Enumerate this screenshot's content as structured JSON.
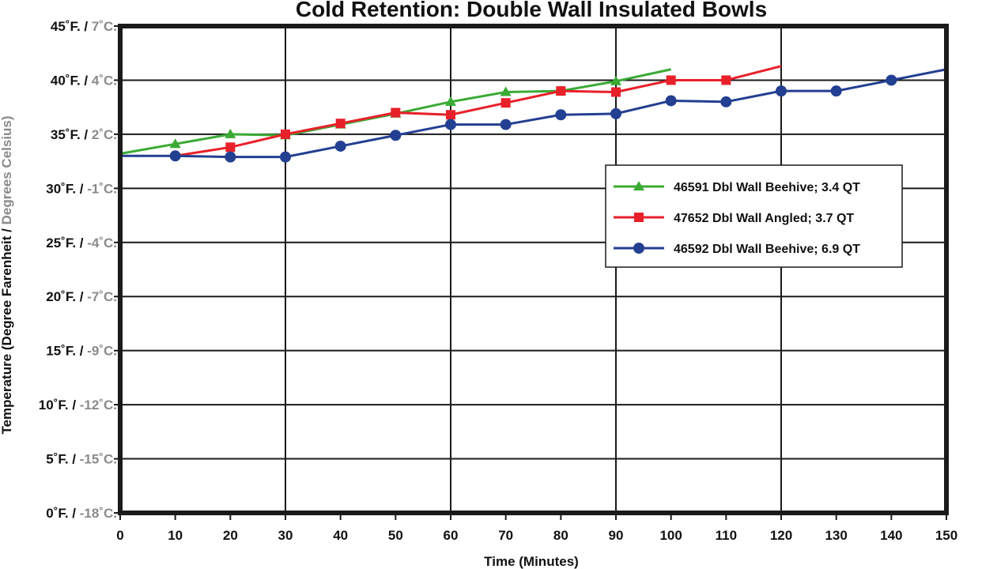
{
  "chart_data": {
    "type": "line",
    "title": "Cold Retention: Double Wall Insulated Bowls",
    "xlabel": "Time (Minutes)",
    "ylabel_f": "Temperature (Degree Farenheit",
    "ylabel_sep": " / ",
    "ylabel_c": "Degrees Celsius)",
    "xlim": [
      0,
      150
    ],
    "ylim": [
      0,
      45
    ],
    "x_ticks": [
      0,
      10,
      20,
      30,
      40,
      50,
      60,
      70,
      80,
      90,
      100,
      110,
      120,
      130,
      140,
      150
    ],
    "y_ticks": [
      {
        "value": 45,
        "f": "45˚F. / ",
        "c": "7˚C."
      },
      {
        "value": 40,
        "f": "40˚F. / ",
        "c": "4˚C."
      },
      {
        "value": 35,
        "f": "35˚F. / ",
        "c": "2˚C."
      },
      {
        "value": 30,
        "f": "30˚F. / ",
        "c": "-1˚C."
      },
      {
        "value": 25,
        "f": "25˚F. / ",
        "c": "-4˚C."
      },
      {
        "value": 20,
        "f": "20˚F. / ",
        "c": "-7˚C."
      },
      {
        "value": 15,
        "f": "15˚F. / ",
        "c": "-9˚C."
      },
      {
        "value": 10,
        "f": "10˚F. / ",
        "c": "-12˚C."
      },
      {
        "value": 5,
        "f": "5˚F. / ",
        "c": "-15˚C."
      },
      {
        "value": 0,
        "f": "0˚F. / ",
        "c": "-18˚C."
      }
    ],
    "grid": true,
    "legend_position": "right",
    "series": [
      {
        "name": "46591 Dbl Wall Beehive; 3.4 QT",
        "color": "#3aaa35",
        "marker": "triangle",
        "x": [
          0,
          10,
          20,
          30,
          40,
          50,
          60,
          70,
          80,
          90,
          100
        ],
        "y": [
          33.2,
          34.1,
          35.0,
          34.9,
          35.9,
          36.9,
          38.0,
          38.9,
          39.0,
          39.9,
          41.0
        ],
        "marker_x": [
          10,
          20,
          30,
          40,
          50,
          60,
          70,
          80,
          90
        ]
      },
      {
        "name": "47652 Dbl Wall Angled; 3.7 QT",
        "color": "#e8202a",
        "marker": "square",
        "x": [
          10,
          20,
          30,
          40,
          50,
          60,
          70,
          80,
          90,
          100,
          110,
          120
        ],
        "y": [
          33.0,
          33.8,
          35.0,
          36.0,
          37.0,
          36.8,
          37.9,
          39.0,
          38.9,
          40.0,
          40.0,
          41.3
        ],
        "marker_x": [
          20,
          30,
          40,
          50,
          60,
          70,
          80,
          90,
          100,
          110
        ]
      },
      {
        "name": "46592 Dbl Wall Beehive; 6.9 QT",
        "color": "#233f91",
        "marker": "circle",
        "x": [
          0,
          10,
          20,
          30,
          40,
          50,
          60,
          70,
          80,
          90,
          100,
          110,
          120,
          130,
          140,
          150
        ],
        "y": [
          33.0,
          33.0,
          32.9,
          32.9,
          33.9,
          34.9,
          35.9,
          35.9,
          36.8,
          36.9,
          38.1,
          38.0,
          39.0,
          39.0,
          40.0,
          41.0
        ],
        "marker_x": [
          10,
          20,
          30,
          40,
          50,
          60,
          70,
          80,
          90,
          100,
          110,
          120,
          130,
          140
        ]
      }
    ]
  }
}
